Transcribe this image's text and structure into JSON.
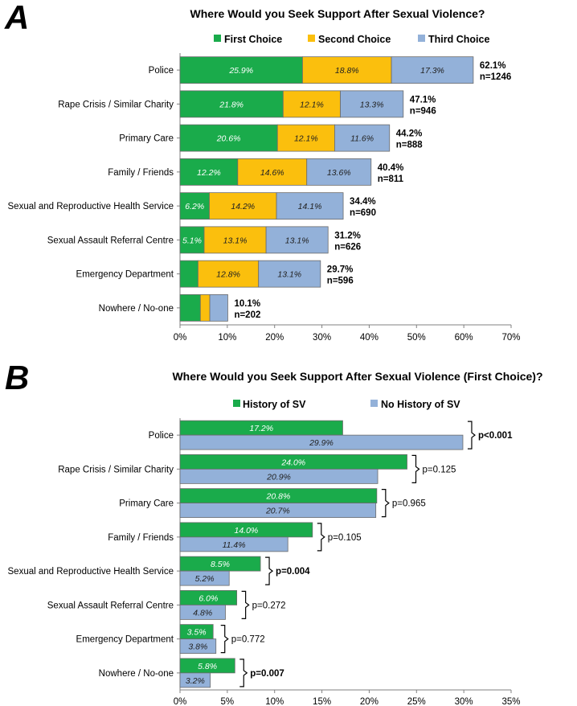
{
  "chart_data": [
    {
      "panel": "A",
      "type": "bar",
      "orientation": "horizontal",
      "stacked": true,
      "title": "Where Would you Seek Support After Sexual Violence?",
      "categories": [
        "Police",
        "Rape Crisis / Similar Charity",
        "Primary Care",
        "Family / Friends",
        "Sexual and Reproductive Health Service",
        "Sexual Assault Referral Centre",
        "Emergency Department",
        "Nowhere / No-one"
      ],
      "series": [
        {
          "name": "First Choice",
          "color": "#1aab4b",
          "values": [
            25.9,
            21.8,
            20.6,
            12.2,
            6.2,
            5.1,
            3.8,
            4.3
          ],
          "labels": [
            "25.9%",
            "21.8%",
            "20.6%",
            "12.2%",
            "6.2%",
            "5.1%",
            "",
            ""
          ],
          "label_color": "#ffffff"
        },
        {
          "name": "Second Choice",
          "color": "#fbbf0d",
          "values": [
            18.8,
            12.1,
            12.1,
            14.6,
            14.2,
            13.1,
            12.8,
            2.0
          ],
          "labels": [
            "18.8%",
            "12.1%",
            "12.1%",
            "14.6%",
            "14.2%",
            "13.1%",
            "12.8%",
            ""
          ],
          "label_color": "#222222"
        },
        {
          "name": "Third Choice",
          "color": "#93b1d9",
          "values": [
            17.3,
            13.3,
            11.6,
            13.6,
            14.1,
            13.1,
            13.1,
            3.8
          ],
          "labels": [
            "17.3%",
            "13.3%",
            "11.6%",
            "13.6%",
            "14.1%",
            "13.1%",
            "13.1%",
            ""
          ],
          "label_color": "#222222"
        }
      ],
      "totals": [
        62.1,
        47.1,
        44.2,
        40.4,
        34.4,
        31.2,
        29.7,
        10.1
      ],
      "total_labels": [
        "62.1%",
        "47.1%",
        "44.2%",
        "40.4%",
        "34.4%",
        "31.2%",
        "29.7%",
        "10.1%"
      ],
      "n_labels": [
        "n=1246",
        "n=946",
        "n=888",
        "n=811",
        "n=690",
        "n=626",
        "n=596",
        "n=202"
      ],
      "xlim": [
        0,
        70
      ],
      "xticks": [
        0,
        10,
        20,
        30,
        40,
        50,
        60,
        70
      ],
      "xtick_labels": [
        "0%",
        "10%",
        "20%",
        "30%",
        "40%",
        "50%",
        "60%",
        "70%"
      ],
      "legend": "top-center",
      "grid": false
    },
    {
      "panel": "B",
      "type": "bar",
      "orientation": "horizontal",
      "stacked": false,
      "title": "Where Would you Seek Support After Sexual Violence (First Choice)?",
      "categories": [
        "Police",
        "Rape Crisis / Similar Charity",
        "Primary Care",
        "Family / Friends",
        "Sexual and Reproductive Health Service",
        "Sexual Assault Referral Centre",
        "Emergency Department",
        "Nowhere / No-one"
      ],
      "series": [
        {
          "name": "History of SV",
          "color": "#1aab4b",
          "values": [
            17.2,
            24.0,
            20.8,
            14.0,
            8.5,
            6.0,
            3.5,
            5.8
          ],
          "labels": [
            "17.2%",
            "24.0%",
            "20.8%",
            "14.0%",
            "8.5%",
            "6.0%",
            "3.5%",
            "5.8%"
          ],
          "label_color": "#ffffff"
        },
        {
          "name": "No History of SV",
          "color": "#93b1d9",
          "values": [
            29.9,
            20.9,
            20.7,
            11.4,
            5.2,
            4.8,
            3.8,
            3.2
          ],
          "labels": [
            "29.9%",
            "20.9%",
            "20.7%",
            "11.4%",
            "5.2%",
            "4.8%",
            "3.8%",
            "3.2%"
          ],
          "label_color": "#222222"
        }
      ],
      "p_values": [
        "p<0.001",
        "p=0.125",
        "p=0.965",
        "p=0.105",
        "p=0.004",
        "p=0.272",
        "p=0.772",
        "p=0.007"
      ],
      "p_significant": [
        true,
        false,
        false,
        false,
        true,
        false,
        false,
        true
      ],
      "xlim": [
        0,
        35
      ],
      "xticks": [
        0,
        5,
        10,
        15,
        20,
        25,
        30,
        35
      ],
      "xtick_labels": [
        "0%",
        "5%",
        "10%",
        "15%",
        "20%",
        "25%",
        "30%",
        "35%"
      ],
      "legend": "top-center",
      "grid": false
    }
  ]
}
